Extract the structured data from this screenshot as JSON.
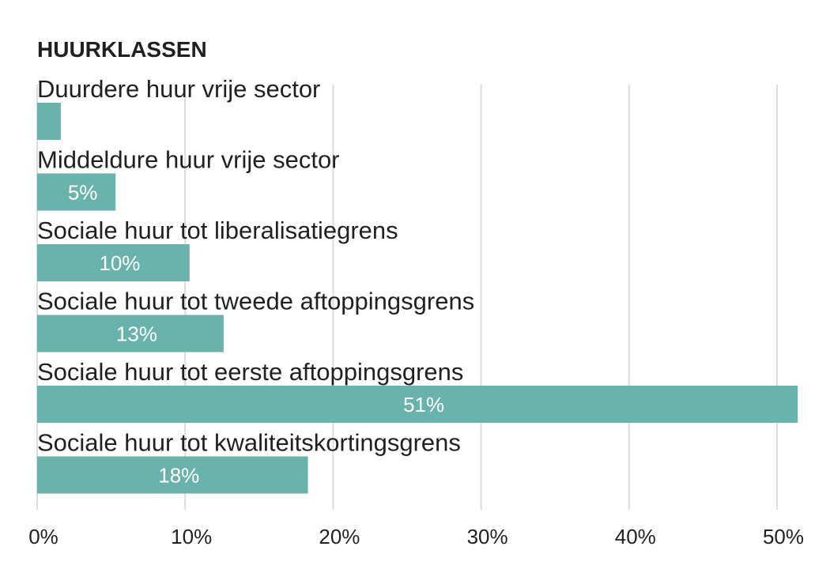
{
  "chart_data": {
    "type": "bar",
    "horizontal": true,
    "title": "HUURKLASSEN",
    "categories": [
      "Duurdere huur vrije sector",
      "Middeldure huur vrije sector",
      "Sociale huur tot liberalisatiegrens",
      "Sociale huur tot tweede aftoppingsgrens",
      "Sociale huur tot eerste aftoppingsgrens",
      "Sociale huur tot kwaliteitskortingsgrens"
    ],
    "values": [
      1.6,
      5.3,
      10.3,
      12.6,
      51.4,
      18.3
    ],
    "data_labels": [
      null,
      "5%",
      "10%",
      "13%",
      "51%",
      "18%"
    ],
    "xticks": [
      0,
      10,
      20,
      30,
      40,
      50
    ],
    "xtick_labels": [
      "0%",
      "10%",
      "20%",
      "30%",
      "40%",
      "50%"
    ],
    "xlim": [
      0,
      50
    ],
    "grid": true,
    "colors": {
      "bar": "#6ab2ac",
      "text": "#231f20",
      "data_label": "#ffffff",
      "grid": "#dcdcdc"
    }
  }
}
